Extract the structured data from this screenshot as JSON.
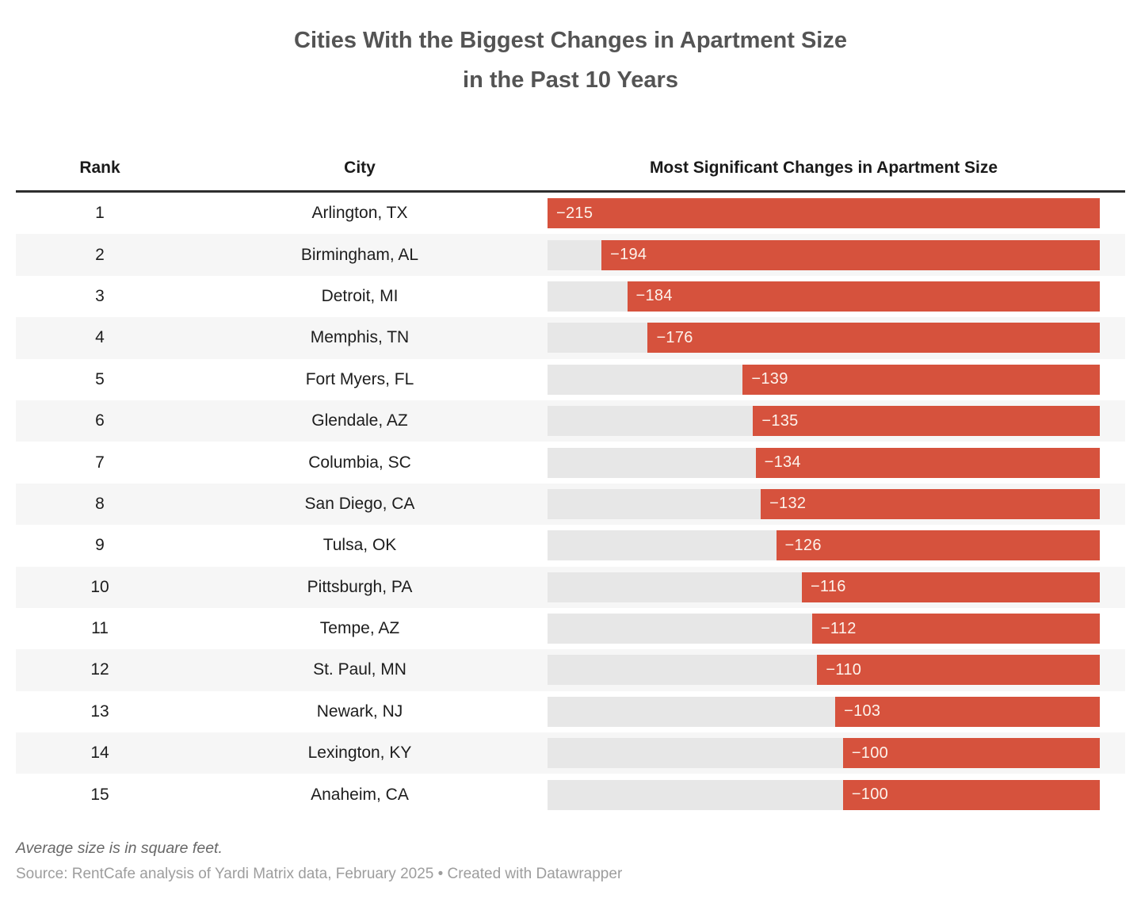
{
  "title": {
    "line1": "Cities With the Biggest Changes in Apartment Size",
    "line2": "in the Past 10 Years"
  },
  "table": {
    "columns": [
      "Rank",
      "City",
      "Most Significant Changes in Apartment Size"
    ],
    "rows": [
      {
        "rank": "1",
        "city": "Arlington, TX",
        "value": -215,
        "label": "−215"
      },
      {
        "rank": "2",
        "city": "Birmingham, AL",
        "value": -194,
        "label": "−194"
      },
      {
        "rank": "3",
        "city": "Detroit, MI",
        "value": -184,
        "label": "−184"
      },
      {
        "rank": "4",
        "city": "Memphis, TN",
        "value": -176,
        "label": "−176"
      },
      {
        "rank": "5",
        "city": "Fort Myers, FL",
        "value": -139,
        "label": "−139"
      },
      {
        "rank": "6",
        "city": "Glendale, AZ",
        "value": -135,
        "label": "−135"
      },
      {
        "rank": "7",
        "city": "Columbia, SC",
        "value": -134,
        "label": "−134"
      },
      {
        "rank": "8",
        "city": "San Diego, CA",
        "value": -132,
        "label": "−132"
      },
      {
        "rank": "9",
        "city": "Tulsa, OK",
        "value": -126,
        "label": "−126"
      },
      {
        "rank": "10",
        "city": "Pittsburgh, PA",
        "value": -116,
        "label": "−116"
      },
      {
        "rank": "11",
        "city": "Tempe, AZ",
        "value": -112,
        "label": "−112"
      },
      {
        "rank": "12",
        "city": "St. Paul, MN",
        "value": -110,
        "label": "−110"
      },
      {
        "rank": "13",
        "city": "Newark, NJ",
        "value": -103,
        "label": "−103"
      },
      {
        "rank": "14",
        "city": "Lexington, KY",
        "value": -100,
        "label": "−100"
      },
      {
        "rank": "15",
        "city": "Anaheim, CA",
        "value": -100,
        "label": "−100"
      }
    ]
  },
  "scale": {
    "max": 215
  },
  "colors": {
    "bar": "#d6523d",
    "bar_label": "#fdf3ec",
    "track": "#e7e7e7",
    "stripe": "#f6f6f6",
    "header_border": "#2e2e2e",
    "title": "#545454",
    "note": "#686868",
    "source": "#9d9d9d"
  },
  "footer": {
    "note": "Average size is in square feet.",
    "source": "Source: RentCafe analysis of Yardi Matrix data, February 2025 • Created with Datawrapper"
  },
  "chart_data": {
    "type": "bar",
    "orientation": "horizontal",
    "title": "Cities With the Biggest Changes in Apartment Size in the Past 10 Years",
    "categories": [
      "Arlington, TX",
      "Birmingham, AL",
      "Detroit, MI",
      "Memphis, TN",
      "Fort Myers, FL",
      "Glendale, AZ",
      "Columbia, SC",
      "San Diego, CA",
      "Tulsa, OK",
      "Pittsburgh, PA",
      "Tempe, AZ",
      "St. Paul, MN",
      "Newark, NJ",
      "Lexington, KY",
      "Anaheim, CA"
    ],
    "values": [
      -215,
      -194,
      -184,
      -176,
      -139,
      -135,
      -134,
      -132,
      -126,
      -116,
      -112,
      -110,
      -103,
      -100,
      -100
    ],
    "xlabel": "Most Significant Changes in Apartment Size",
    "ylabel": "City",
    "xlim": [
      -215,
      0
    ],
    "unit": "square feet",
    "legend": "none",
    "grid": "off",
    "bar_color": "#d6523d",
    "annotations": [
      "Average size is in square feet.",
      "Source: RentCafe analysis of Yardi Matrix data, February 2025"
    ]
  }
}
